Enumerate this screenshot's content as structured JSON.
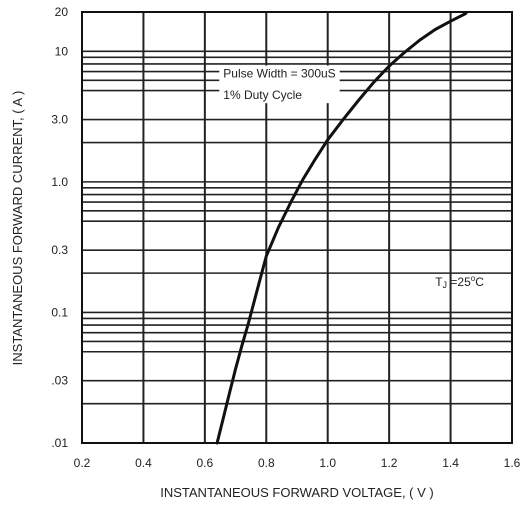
{
  "chart_data": {
    "type": "line",
    "xlabel": "INSTANTANEOUS FORWARD VOLTAGE, ( V )",
    "ylabel": "INSTANTANEOUS FORWARD CURRENT, ( A )",
    "xlim": [
      0.2,
      1.6
    ],
    "ylim": [
      0.01,
      20
    ],
    "y_scale": "log",
    "grid": true,
    "x_ticks": [
      {
        "value": 0.2,
        "label": "0.2"
      },
      {
        "value": 0.4,
        "label": "0.4"
      },
      {
        "value": 0.6,
        "label": "0.6"
      },
      {
        "value": 0.8,
        "label": "0.8"
      },
      {
        "value": 1.0,
        "label": "1.0"
      },
      {
        "value": 1.2,
        "label": "1.2"
      },
      {
        "value": 1.4,
        "label": "1.4"
      },
      {
        "value": 1.6,
        "label": "1.6"
      }
    ],
    "y_ticks": [
      {
        "value": 20,
        "label": "20"
      },
      {
        "value": 10,
        "label": "10"
      },
      {
        "value": 3,
        "label": "3.0"
      },
      {
        "value": 1,
        "label": "1.0"
      },
      {
        "value": 0.3,
        "label": "0.3"
      },
      {
        "value": 0.1,
        "label": "0.1"
      },
      {
        "value": 0.03,
        "label": ".03"
      },
      {
        "value": 0.01,
        "label": ".01"
      }
    ],
    "y_gridlines": [
      0.01,
      0.02,
      0.03,
      0.05,
      0.06,
      0.07,
      0.08,
      0.09,
      0.1,
      0.2,
      0.3,
      0.5,
      0.6,
      0.7,
      0.8,
      0.9,
      1,
      2,
      3,
      5,
      6,
      7,
      8,
      9,
      10,
      20
    ],
    "series": [
      {
        "x": [
          0.64,
          0.66,
          0.68,
          0.7,
          0.72,
          0.74,
          0.76,
          0.78,
          0.8,
          0.84,
          0.88,
          0.92,
          0.96,
          1.0,
          1.05,
          1.1,
          1.15,
          1.2,
          1.25,
          1.3,
          1.35,
          1.4,
          1.45
        ],
        "y": [
          0.01,
          0.0155,
          0.024,
          0.037,
          0.055,
          0.08,
          0.12,
          0.18,
          0.27,
          0.45,
          0.7,
          1.05,
          1.5,
          2.1,
          3.0,
          4.2,
          5.8,
          7.7,
          9.8,
          12.2,
          14.7,
          17.0,
          19.5
        ]
      }
    ],
    "annotations": [
      {
        "text": "Pulse Width = 300uS",
        "x": 0.66,
        "y": 6.3
      },
      {
        "text": "1% Duty Cycle",
        "x": 0.66,
        "y": 4.3
      }
    ],
    "temp_label": {
      "main": "T",
      "sub": "J",
      "rest": " =25",
      "sup": "o",
      "unit": "C",
      "x": 1.35,
      "y": 0.16
    }
  }
}
